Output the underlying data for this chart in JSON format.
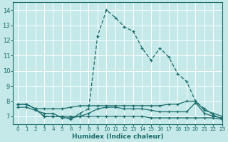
{
  "xlabel": "Humidex (Indice chaleur)",
  "bg_color": "#c5e8e8",
  "grid_color": "#ffffff",
  "line_color": "#1a6b6b",
  "xlim": [
    -0.5,
    23
  ],
  "ylim": [
    6.5,
    14.5
  ],
  "yticks": [
    7,
    8,
    9,
    10,
    11,
    12,
    13,
    14
  ],
  "xticks": [
    0,
    1,
    2,
    3,
    4,
    5,
    6,
    7,
    8,
    9,
    10,
    11,
    12,
    13,
    14,
    15,
    16,
    17,
    18,
    19,
    20,
    21,
    22,
    23
  ],
  "line1_x": [
    0,
    1,
    2,
    3,
    4,
    5,
    6,
    7,
    8,
    9,
    10,
    11,
    12,
    13,
    14,
    15,
    16,
    17,
    18,
    19,
    20,
    21,
    22,
    23
  ],
  "line1_y": [
    7.8,
    7.8,
    7.5,
    7.0,
    7.0,
    7.0,
    6.8,
    7.2,
    7.5,
    12.3,
    14.0,
    13.5,
    12.9,
    12.6,
    11.5,
    10.7,
    11.5,
    10.9,
    9.8,
    9.3,
    8.0,
    7.5,
    7.1,
    6.8
  ],
  "line2_x": [
    0,
    1,
    2,
    3,
    4,
    5,
    6,
    7,
    8,
    9,
    10,
    11,
    12,
    13,
    14,
    15,
    16,
    17,
    18,
    19,
    20,
    21,
    22,
    23
  ],
  "line2_y": [
    7.8,
    7.8,
    7.5,
    7.5,
    7.5,
    7.5,
    7.6,
    7.7,
    7.7,
    7.7,
    7.7,
    7.7,
    7.7,
    7.7,
    7.7,
    7.7,
    7.7,
    7.8,
    7.8,
    8.0,
    8.0,
    7.4,
    7.2,
    7.0
  ],
  "line3_x": [
    0,
    1,
    2,
    3,
    4,
    5,
    6,
    7,
    8,
    9,
    10,
    11,
    12,
    13,
    14,
    15,
    16,
    17,
    18,
    19,
    20,
    21,
    22,
    23
  ],
  "line3_y": [
    7.8,
    7.8,
    7.5,
    7.0,
    7.0,
    7.0,
    7.0,
    7.0,
    7.0,
    7.0,
    7.0,
    7.0,
    7.0,
    7.0,
    7.0,
    6.9,
    6.9,
    6.9,
    6.9,
    6.9,
    6.9,
    6.9,
    6.9,
    6.8
  ],
  "line4_x": [
    0,
    1,
    2,
    3,
    4,
    5,
    6,
    7,
    8,
    9,
    10,
    11,
    12,
    13,
    14,
    15,
    16,
    17,
    18,
    19,
    20,
    21,
    22,
    23
  ],
  "line4_y": [
    7.6,
    7.6,
    7.4,
    7.2,
    7.2,
    6.9,
    6.9,
    7.0,
    7.2,
    7.5,
    7.6,
    7.6,
    7.5,
    7.5,
    7.5,
    7.4,
    7.3,
    7.3,
    7.3,
    7.3,
    7.9,
    7.2,
    7.0,
    6.9
  ]
}
